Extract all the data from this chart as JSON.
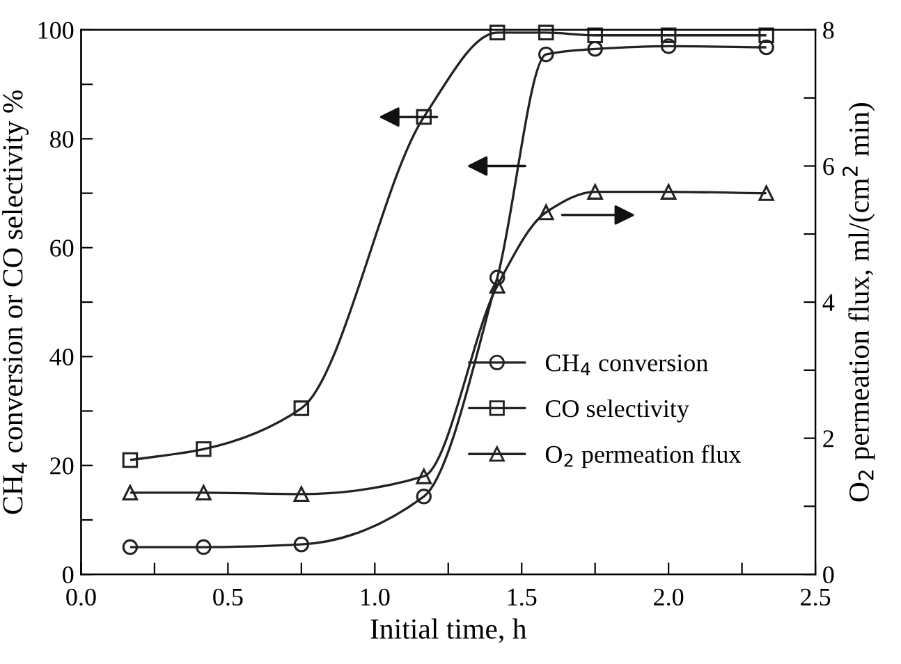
{
  "chart_data": {
    "type": "line",
    "xlabel": "Initial time, h",
    "ylabel": "CH$_{4}$ conversion or CO selectivity %",
    "y2label": "O$_{2}$ permeation flux, ml/(cm$^{2}$ min)",
    "x": [
      0.167,
      0.417,
      0.75,
      1.167,
      1.417,
      1.583,
      1.75,
      2.0,
      2.333
    ],
    "series": [
      {
        "name": "CH$_{4}$ conversion",
        "color": "#222222",
        "marker": "circle",
        "values": [
          5,
          5,
          5.5,
          14.3,
          54.5,
          95.5,
          96.5,
          97,
          96.8
        ]
      },
      {
        "name": "CO selectivity",
        "color": "#222222",
        "marker": "square",
        "values": [
          21,
          23,
          30.5,
          84,
          99.5,
          99.5,
          99,
          99,
          99
        ]
      },
      {
        "name": "O$_{2}$ permeation flux",
        "color": "#222222",
        "marker": "triangle",
        "axis": "y2",
        "values": [
          1.2,
          1.2,
          1.18,
          1.44,
          4.24,
          5.32,
          5.62,
          5.62,
          5.6
        ]
      }
    ],
    "xlim": [
      0,
      2.5
    ],
    "ylim": [
      0,
      100
    ],
    "y2lim": [
      0,
      8
    ],
    "xticks": [
      {
        "value": 0,
        "label": "0.0"
      },
      {
        "value": 0.25,
        "label": null
      },
      {
        "value": 0.5,
        "label": "0.5"
      },
      {
        "value": 0.75,
        "label": null
      },
      {
        "value": 1,
        "label": "1.0"
      },
      {
        "value": 1.25,
        "label": null
      },
      {
        "value": 1.5,
        "label": "1.5"
      },
      {
        "value": 1.75,
        "label": null
      },
      {
        "value": 2,
        "label": "2.0"
      },
      {
        "value": 2.25,
        "label": null
      },
      {
        "value": 2.5,
        "label": "2.5"
      }
    ],
    "yticks": [
      0,
      {
        "value": 10,
        "label": null
      },
      20,
      {
        "value": 30,
        "label": null
      },
      40,
      {
        "value": 50,
        "label": null
      },
      60,
      {
        "value": 70,
        "label": null
      },
      80,
      {
        "value": 90,
        "label": null
      },
      100
    ],
    "y2ticks": [
      0,
      {
        "value": 1,
        "label": null
      },
      2,
      {
        "value": 3,
        "label": null
      },
      4,
      {
        "value": 5,
        "label": null
      },
      6,
      {
        "value": 7,
        "label": null
      },
      8
    ],
    "legend": "right",
    "grid": false,
    "line_style": "solid"
  }
}
